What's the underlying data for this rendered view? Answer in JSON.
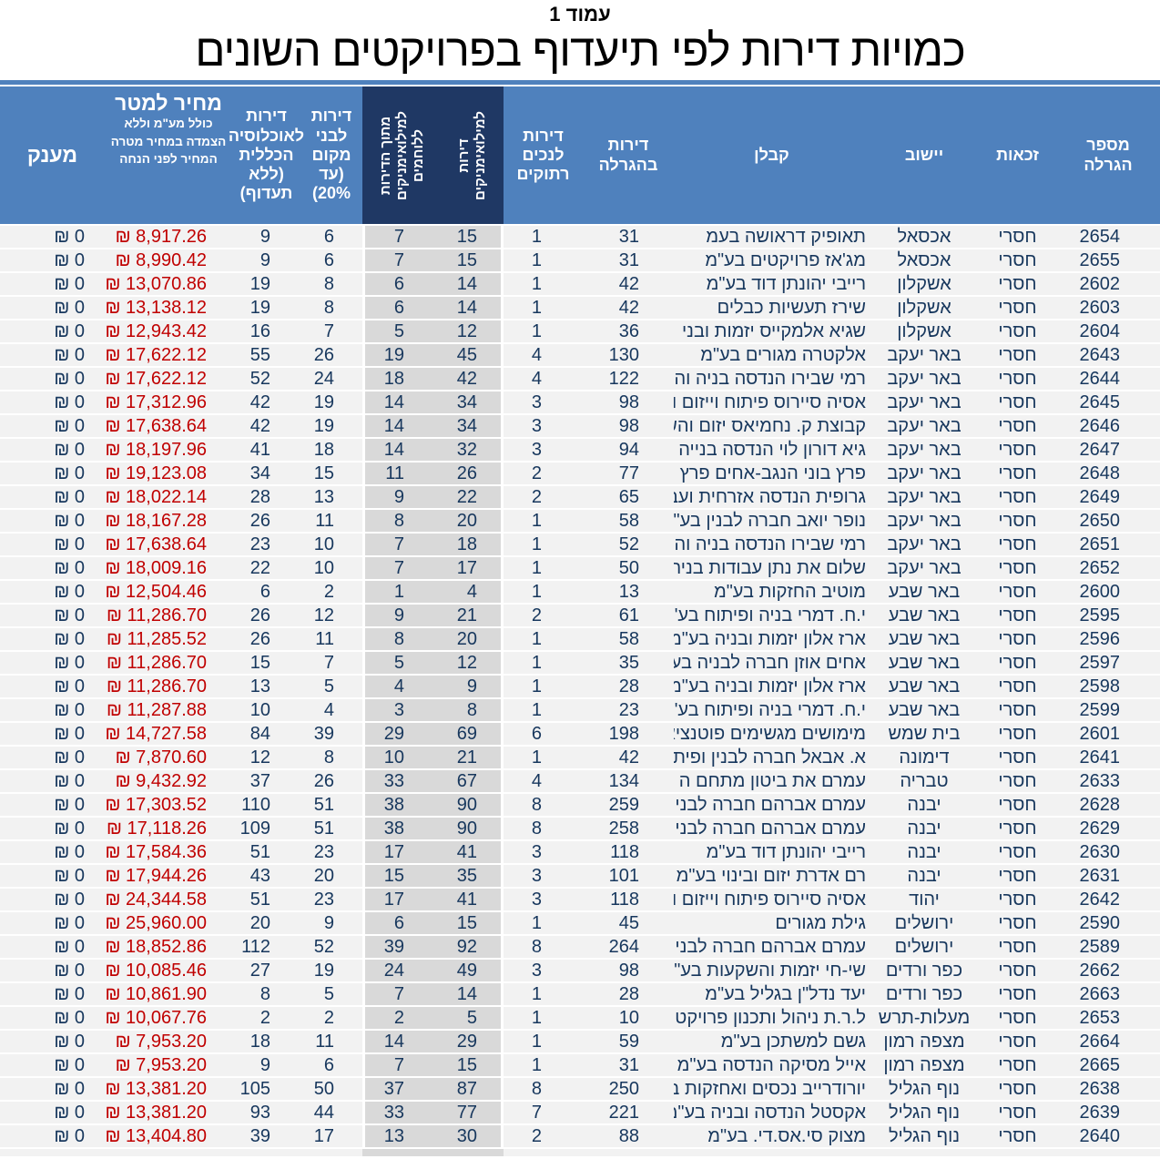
{
  "page": {
    "page_label": "עמוד 1",
    "title": "כמויות דירות לפי תיעדוף בפרויקטים השונים"
  },
  "currency_symbol": "₪",
  "colors": {
    "header_blue": "#4F81BD",
    "header_dark_navy": "#1F3864",
    "body_text_navy": "#17375D",
    "price_red": "#C00000",
    "row_bg": "#F2F2F2",
    "highlight_column_bg": "#D9D9D9"
  },
  "table": {
    "headers": {
      "lottery": "מספר\nהגרלה",
      "eligibility": "זכאות",
      "town": "יישוב",
      "contractor": "קבלן",
      "total": "דירות\nבהגרלה",
      "disabled": "דירות\nלנכים\nרתוקים",
      "miluim": "דירות\nלמילואימניקים",
      "fighters": "מתוך הדירות\nלמילואימניקים\nללוחמים",
      "locals": "דירות\nלבני\nמקום\n(עד\n20%)",
      "general": "דירות\nלאוכלוסיה\nהכללית\n(ללא\nתעדוף)",
      "price_title": "מחיר למטר",
      "price_sub": "כולל מע\"מ וללא\nהצמדה במחיר מטרה\nהמחיר לפני הנחה",
      "grant": "מענק"
    },
    "rows": [
      {
        "lottery": "2654",
        "eligibility": "חסרי",
        "town": "אכסאל",
        "contractor": "תאופיק דראושה בעמ",
        "total": "31",
        "disabled": "1",
        "miluim": "15",
        "fighters": "7",
        "locals": "6",
        "general": "9",
        "price": "8,917.26",
        "grant": "0"
      },
      {
        "lottery": "2655",
        "eligibility": "חסרי",
        "town": "אכסאל",
        "contractor": "מג'אז פרויקטים בע\"מ",
        "total": "31",
        "disabled": "1",
        "miluim": "15",
        "fighters": "7",
        "locals": "6",
        "general": "9",
        "price": "8,990.42",
        "grant": "0"
      },
      {
        "lottery": "2602",
        "eligibility": "חסרי",
        "town": "אשקלון",
        "contractor": "רייבי יהונתן דוד בע\"מ",
        "total": "42",
        "disabled": "1",
        "miluim": "14",
        "fighters": "6",
        "locals": "8",
        "general": "19",
        "price": "13,070.86",
        "grant": "0"
      },
      {
        "lottery": "2603",
        "eligibility": "חסרי",
        "town": "אשקלון",
        "contractor": "שירז תעשיות כבלים",
        "total": "42",
        "disabled": "1",
        "miluim": "14",
        "fighters": "6",
        "locals": "8",
        "general": "19",
        "price": "13,138.12",
        "grant": "0"
      },
      {
        "lottery": "2604",
        "eligibility": "חסרי",
        "town": "אשקלון",
        "contractor": "שגיא אלמקייס יזמות ובני",
        "total": "36",
        "disabled": "1",
        "miluim": "12",
        "fighters": "5",
        "locals": "7",
        "general": "16",
        "price": "12,943.42",
        "grant": "0"
      },
      {
        "lottery": "2643",
        "eligibility": "חסרי",
        "town": "באר יעקב",
        "contractor": "אלקטרה מגורים בע\"מ",
        "total": "130",
        "disabled": "4",
        "miluim": "45",
        "fighters": "19",
        "locals": "26",
        "general": "55",
        "price": "17,622.12",
        "grant": "0"
      },
      {
        "lottery": "2644",
        "eligibility": "חסרי",
        "town": "באר יעקב",
        "contractor": "רמי שבירו הנדסה בניה וה",
        "total": "122",
        "disabled": "4",
        "miluim": "42",
        "fighters": "18",
        "locals": "24",
        "general": "52",
        "price": "17,622.12",
        "grant": "0"
      },
      {
        "lottery": "2645",
        "eligibility": "חסרי",
        "town": "באר יעקב",
        "contractor": "אסיה סיירוס פיתוח וייזום ו",
        "total": "98",
        "disabled": "3",
        "miluim": "34",
        "fighters": "14",
        "locals": "19",
        "general": "42",
        "price": "17,312.96",
        "grant": "0"
      },
      {
        "lottery": "2646",
        "eligibility": "חסרי",
        "town": "באר יעקב",
        "contractor": "קבוצת ק. נחמיאס יזום והש",
        "total": "98",
        "disabled": "3",
        "miluim": "34",
        "fighters": "14",
        "locals": "19",
        "general": "42",
        "price": "17,638.64",
        "grant": "0"
      },
      {
        "lottery": "2647",
        "eligibility": "חסרי",
        "town": "באר יעקב",
        "contractor": "גיא דורון לוי הנדסה בנייה",
        "total": "94",
        "disabled": "3",
        "miluim": "32",
        "fighters": "14",
        "locals": "18",
        "general": "41",
        "price": "18,197.96",
        "grant": "0"
      },
      {
        "lottery": "2648",
        "eligibility": "חסרי",
        "town": "באר יעקב",
        "contractor": "פרץ בוני הנגב-אחים פרץ",
        "total": "77",
        "disabled": "2",
        "miluim": "26",
        "fighters": "11",
        "locals": "15",
        "general": "34",
        "price": "19,123.08",
        "grant": "0"
      },
      {
        "lottery": "2649",
        "eligibility": "חסרי",
        "town": "באר יעקב",
        "contractor": "גרופית הנדסה אזרחית ועב",
        "total": "65",
        "disabled": "2",
        "miluim": "22",
        "fighters": "9",
        "locals": "13",
        "general": "28",
        "price": "18,022.14",
        "grant": "0"
      },
      {
        "lottery": "2650",
        "eligibility": "חסרי",
        "town": "באר יעקב",
        "contractor": "נופר יואב חברה לבנין בע\"",
        "total": "58",
        "disabled": "1",
        "miluim": "20",
        "fighters": "8",
        "locals": "11",
        "general": "26",
        "price": "18,167.28",
        "grant": "0"
      },
      {
        "lottery": "2651",
        "eligibility": "חסרי",
        "town": "באר יעקב",
        "contractor": "רמי שבירו הנדסה בניה וה",
        "total": "52",
        "disabled": "1",
        "miluim": "18",
        "fighters": "7",
        "locals": "10",
        "general": "23",
        "price": "17,638.64",
        "grant": "0"
      },
      {
        "lottery": "2652",
        "eligibility": "חסרי",
        "town": "באר יעקב",
        "contractor": "שלום את נתן עבודות בניה",
        "total": "50",
        "disabled": "1",
        "miluim": "17",
        "fighters": "7",
        "locals": "10",
        "general": "22",
        "price": "18,009.16",
        "grant": "0"
      },
      {
        "lottery": "2600",
        "eligibility": "חסרי",
        "town": "באר שבע",
        "contractor": "מוטיב החזקות בע\"מ",
        "total": "13",
        "disabled": "1",
        "miluim": "4",
        "fighters": "1",
        "locals": "2",
        "general": "6",
        "price": "12,504.46",
        "grant": "0"
      },
      {
        "lottery": "2595",
        "eligibility": "חסרי",
        "town": "באר שבע",
        "contractor": "י.ח. דמרי בניה ופיתוח בע\"",
        "total": "61",
        "disabled": "2",
        "miluim": "21",
        "fighters": "9",
        "locals": "12",
        "general": "26",
        "price": "11,286.70",
        "grant": "0"
      },
      {
        "lottery": "2596",
        "eligibility": "חסרי",
        "town": "באר שבע",
        "contractor": "ארז אלון יזמות ובניה בע\"מ",
        "total": "58",
        "disabled": "1",
        "miluim": "20",
        "fighters": "8",
        "locals": "11",
        "general": "26",
        "price": "11,285.52",
        "grant": "0"
      },
      {
        "lottery": "2597",
        "eligibility": "חסרי",
        "town": "באר שבע",
        "contractor": "אחים אוזן חברה לבניה בע",
        "total": "35",
        "disabled": "1",
        "miluim": "12",
        "fighters": "5",
        "locals": "7",
        "general": "15",
        "price": "11,286.70",
        "grant": "0"
      },
      {
        "lottery": "2598",
        "eligibility": "חסרי",
        "town": "באר שבע",
        "contractor": "ארז אלון יזמות ובניה בע\"מ",
        "total": "28",
        "disabled": "1",
        "miluim": "9",
        "fighters": "4",
        "locals": "5",
        "general": "13",
        "price": "11,286.70",
        "grant": "0"
      },
      {
        "lottery": "2599",
        "eligibility": "חסרי",
        "town": "באר שבע",
        "contractor": "י.ח. דמרי בניה ופיתוח בע\"",
        "total": "23",
        "disabled": "1",
        "miluim": "8",
        "fighters": "3",
        "locals": "4",
        "general": "10",
        "price": "11,287.88",
        "grant": "0"
      },
      {
        "lottery": "2601",
        "eligibility": "חסרי",
        "town": "בית שמש",
        "contractor": "מימושים מגשימים פוטנציא",
        "total": "198",
        "disabled": "6",
        "miluim": "69",
        "fighters": "29",
        "locals": "39",
        "general": "84",
        "price": "14,727.58",
        "grant": "0"
      },
      {
        "lottery": "2641",
        "eligibility": "חסרי",
        "town": "דימונה",
        "contractor": "א. אבאל חברה לבנין ופית",
        "total": "42",
        "disabled": "1",
        "miluim": "21",
        "fighters": "10",
        "locals": "8",
        "general": "12",
        "price": "7,870.60",
        "grant": "0"
      },
      {
        "lottery": "2633",
        "eligibility": "חסרי",
        "town": "טבריה",
        "contractor": "עמרם את ביטון מתחם ה (",
        "total": "134",
        "disabled": "4",
        "miluim": "67",
        "fighters": "33",
        "locals": "26",
        "general": "37",
        "price": "9,432.92",
        "grant": "0"
      },
      {
        "lottery": "2628",
        "eligibility": "חסרי",
        "town": "יבנה",
        "contractor": "עמרם אברהם חברה לבנין",
        "total": "259",
        "disabled": "8",
        "miluim": "90",
        "fighters": "38",
        "locals": "51",
        "general": "110",
        "price": "17,303.52",
        "grant": "0"
      },
      {
        "lottery": "2629",
        "eligibility": "חסרי",
        "town": "יבנה",
        "contractor": "עמרם אברהם חברה לבנין",
        "total": "258",
        "disabled": "8",
        "miluim": "90",
        "fighters": "38",
        "locals": "51",
        "general": "109",
        "price": "17,118.26",
        "grant": "0"
      },
      {
        "lottery": "2630",
        "eligibility": "חסרי",
        "town": "יבנה",
        "contractor": "רייבי יהונתן דוד בע\"מ",
        "total": "118",
        "disabled": "3",
        "miluim": "41",
        "fighters": "17",
        "locals": "23",
        "general": "51",
        "price": "17,584.36",
        "grant": "0"
      },
      {
        "lottery": "2631",
        "eligibility": "חסרי",
        "town": "יבנה",
        "contractor": "רם אדרת יזום ובינוי בע\"מ",
        "total": "101",
        "disabled": "3",
        "miluim": "35",
        "fighters": "15",
        "locals": "20",
        "general": "43",
        "price": "17,944.26",
        "grant": "0"
      },
      {
        "lottery": "2642",
        "eligibility": "חסרי",
        "town": "יהוד",
        "contractor": "אסיה סיירוס פיתוח וייזום ו",
        "total": "118",
        "disabled": "3",
        "miluim": "41",
        "fighters": "17",
        "locals": "23",
        "general": "51",
        "price": "24,344.58",
        "grant": "0"
      },
      {
        "lottery": "2590",
        "eligibility": "חסרי",
        "town": "ירושלים",
        "contractor": "גילת מגורים",
        "total": "45",
        "disabled": "1",
        "miluim": "15",
        "fighters": "6",
        "locals": "9",
        "general": "20",
        "price": "25,960.00",
        "grant": "0"
      },
      {
        "lottery": "2589",
        "eligibility": "חסרי",
        "town": "ירושלים",
        "contractor": "עמרם אברהם חברה לבנין",
        "total": "264",
        "disabled": "8",
        "miluim": "92",
        "fighters": "39",
        "locals": "52",
        "general": "112",
        "price": "18,852.86",
        "grant": "0"
      },
      {
        "lottery": "2662",
        "eligibility": "חסרי",
        "town": "כפר ורדים",
        "contractor": "שי-חי יזמות והשקעות בע\"",
        "total": "98",
        "disabled": "3",
        "miluim": "49",
        "fighters": "24",
        "locals": "19",
        "general": "27",
        "price": "10,085.46",
        "grant": "0"
      },
      {
        "lottery": "2663",
        "eligibility": "חסרי",
        "town": "כפר ורדים",
        "contractor": "יעד נדל\"ן בגליל בע\"מ",
        "total": "28",
        "disabled": "1",
        "miluim": "14",
        "fighters": "7",
        "locals": "5",
        "general": "8",
        "price": "10,861.90",
        "grant": "0"
      },
      {
        "lottery": "2653",
        "eligibility": "חסרי",
        "town": "מעלות-תרש",
        "contractor": "ל.ר.ת ניהול ותכנון פרויקטי",
        "total": "10",
        "disabled": "1",
        "miluim": "5",
        "fighters": "2",
        "locals": "2",
        "general": "2",
        "price": "10,067.76",
        "grant": "0"
      },
      {
        "lottery": "2664",
        "eligibility": "חסרי",
        "town": "מצפה רמון",
        "contractor": "גשם למשתכן בע\"מ",
        "total": "59",
        "disabled": "1",
        "miluim": "29",
        "fighters": "14",
        "locals": "11",
        "general": "18",
        "price": "7,953.20",
        "grant": "0"
      },
      {
        "lottery": "2665",
        "eligibility": "חסרי",
        "town": "מצפה רמון",
        "contractor": "אייל מסיקה הנדסה בע\"מ",
        "total": "31",
        "disabled": "1",
        "miluim": "15",
        "fighters": "7",
        "locals": "6",
        "general": "9",
        "price": "7,953.20",
        "grant": "0"
      },
      {
        "lottery": "2638",
        "eligibility": "חסרי",
        "town": "נוף הגליל",
        "contractor": "יורודרייב נכסים ואחזקות ב",
        "total": "250",
        "disabled": "8",
        "miluim": "87",
        "fighters": "37",
        "locals": "50",
        "general": "105",
        "price": "13,381.20",
        "grant": "0"
      },
      {
        "lottery": "2639",
        "eligibility": "חסרי",
        "town": "נוף הגליל",
        "contractor": "אקסטל הנדסה ובניה בע\"מ",
        "total": "221",
        "disabled": "7",
        "miluim": "77",
        "fighters": "33",
        "locals": "44",
        "general": "93",
        "price": "13,381.20",
        "grant": "0"
      },
      {
        "lottery": "2640",
        "eligibility": "חסרי",
        "town": "נוף הגליל",
        "contractor": "מצוק סי.אס.די. בע\"מ",
        "total": "88",
        "disabled": "2",
        "miluim": "30",
        "fighters": "13",
        "locals": "17",
        "general": "39",
        "price": "13,404.80",
        "grant": "0"
      }
    ]
  }
}
